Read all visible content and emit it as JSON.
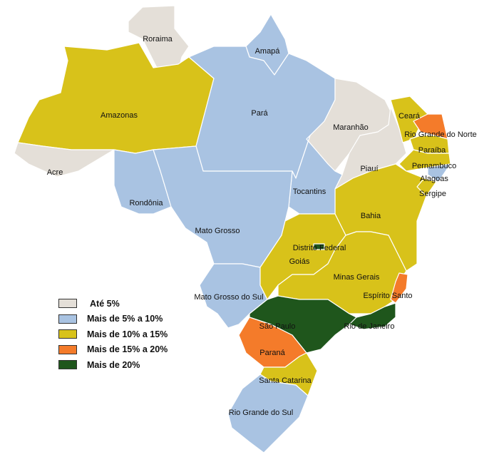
{
  "colors": {
    "ate_5": "#e4dfd8",
    "5_10": "#a9c3e2",
    "10_15": "#d8c21a",
    "15_20": "#f47b2a",
    "mais_20": "#1f561c"
  },
  "legend": [
    {
      "key": "ate_5",
      "label": "Até 5%"
    },
    {
      "key": "5_10",
      "label": "Mais de 5% a 10%"
    },
    {
      "key": "10_15",
      "label": "Mais de 10% a 15%"
    },
    {
      "key": "15_20",
      "label": "Mais de 15% a 20%"
    },
    {
      "key": "mais_20",
      "label": "Mais de 20%"
    }
  ],
  "states": [
    {
      "name": "Roraima",
      "category": "ate_5"
    },
    {
      "name": "Amapá",
      "category": "5_10"
    },
    {
      "name": "Amazonas",
      "category": "10_15"
    },
    {
      "name": "Acre",
      "category": "ate_5"
    },
    {
      "name": "Pará",
      "category": "5_10"
    },
    {
      "name": "Maranhão",
      "category": "ate_5"
    },
    {
      "name": "Piauí",
      "category": "ate_5"
    },
    {
      "name": "Ceará",
      "category": "10_15"
    },
    {
      "name": "Rio Grande do Norte",
      "category": "15_20"
    },
    {
      "name": "Paraíba",
      "category": "10_15"
    },
    {
      "name": "Pernambuco",
      "category": "10_15"
    },
    {
      "name": "Alagoas",
      "category": "5_10"
    },
    {
      "name": "Sergipe",
      "category": "10_15"
    },
    {
      "name": "Bahia",
      "category": "10_15"
    },
    {
      "name": "Tocantins",
      "category": "5_10"
    },
    {
      "name": "Rondônia",
      "category": "5_10"
    },
    {
      "name": "Mato Grosso",
      "category": "5_10"
    },
    {
      "name": "Mato Grosso do Sul",
      "category": "5_10"
    },
    {
      "name": "Goiás",
      "category": "10_15"
    },
    {
      "name": "Distrito Federal",
      "category": "mais_20"
    },
    {
      "name": "Minas Gerais",
      "category": "10_15"
    },
    {
      "name": "Espírito Santo",
      "category": "15_20"
    },
    {
      "name": "Rio de Janeiro",
      "category": "mais_20"
    },
    {
      "name": "São Paulo",
      "category": "mais_20"
    },
    {
      "name": "Paraná",
      "category": "15_20"
    },
    {
      "name": "Santa Catarina",
      "category": "10_15"
    },
    {
      "name": "Rio Grande do Sul",
      "category": "5_10"
    }
  ]
}
